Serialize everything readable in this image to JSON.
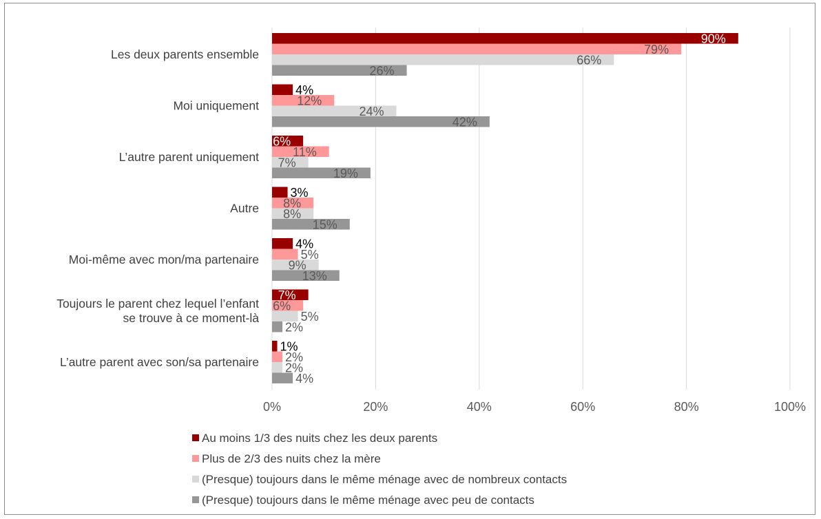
{
  "chart_data": {
    "type": "bar",
    "orientation": "horizontal",
    "categories": [
      [
        "Les deux parents ensemble"
      ],
      [
        "Moi uniquement"
      ],
      [
        "L’autre parent uniquement"
      ],
      [
        "Autre"
      ],
      [
        "Moi-même avec mon/ma partenaire"
      ],
      [
        "Toujours le parent chez lequel l’enfant",
        "se trouve à ce moment-là"
      ],
      [
        "L’autre parent avec son/sa partenaire"
      ]
    ],
    "series": [
      {
        "name": "Au moins 1/3 des nuits chez les deux parents",
        "color": "#990000",
        "label_color": "#ffffff",
        "values": [
          90,
          4,
          6,
          3,
          4,
          7,
          1
        ],
        "labels": [
          "90%",
          "4%",
          "6%",
          "3%",
          "4%",
          "7%",
          "1%"
        ]
      },
      {
        "name": "Plus de 2/3 des nuits chez la mère",
        "color": "#ff9999",
        "label_color": "#595959",
        "values": [
          79,
          12,
          11,
          8,
          5,
          6,
          2
        ],
        "labels": [
          "79%",
          "12%",
          "11%",
          "8%",
          "5%",
          "6%",
          "2%"
        ]
      },
      {
        "name": "(Presque) toujours dans le même ménage avec de nombreux contacts",
        "color": "#d9d9d9",
        "label_color": "#595959",
        "values": [
          66,
          24,
          7,
          8,
          9,
          5,
          2
        ],
        "labels": [
          "66%",
          "24%",
          "7%",
          "8%",
          "9%",
          "5%",
          "2%"
        ]
      },
      {
        "name": "(Presque) toujours dans le même ménage avec peu de contacts",
        "color": "#969696",
        "label_color": "#595959",
        "values": [
          26,
          42,
          19,
          15,
          13,
          2,
          4
        ],
        "labels": [
          "26%",
          "42%",
          "19%",
          "15%",
          "13%",
          "2%",
          "4%"
        ]
      }
    ],
    "xlim": [
      0,
      100
    ],
    "xticks": [
      "0%",
      "20%",
      "40%",
      "60%",
      "80%",
      "100%"
    ],
    "grid": true,
    "legend_position": "bottom",
    "gridline_color": "#d9d9d9"
  }
}
